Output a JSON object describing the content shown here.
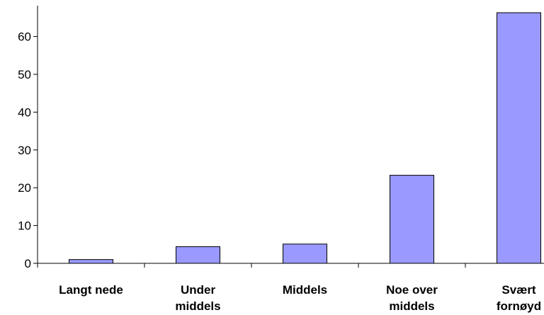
{
  "chart_data": {
    "type": "bar",
    "title": "",
    "xlabel": "",
    "ylabel": "",
    "categories": [
      [
        "Langt nede"
      ],
      [
        "Under",
        "middels"
      ],
      [
        "Middels"
      ],
      [
        "Noe over",
        "middels"
      ],
      [
        "Svært",
        "fornøyd"
      ]
    ],
    "values": [
      1,
      4.4,
      5.1,
      23.3,
      66.3
    ],
    "ylim": [
      0,
      66.7
    ],
    "yticks": [
      0,
      10,
      20,
      30,
      40,
      50,
      60
    ],
    "grid": false,
    "legend": "none",
    "colors": {
      "bar_fill": "#9999FF",
      "bar_stroke": "#000000",
      "axis": "#000000"
    }
  }
}
